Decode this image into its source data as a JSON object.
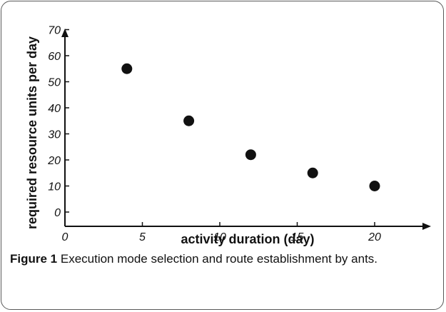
{
  "chart_data": {
    "type": "scatter",
    "title": "",
    "xlabel": "activity duration (day)",
    "ylabel": "required resource units per day",
    "xlim": [
      0,
      23.5
    ],
    "ylim": [
      -6,
      70
    ],
    "x_ticks": [
      0,
      5,
      10,
      15,
      20
    ],
    "y_ticks": [
      0,
      10,
      20,
      30,
      40,
      50,
      60,
      70
    ],
    "grid": false,
    "marker_color": "#111111",
    "points": [
      {
        "x": 4,
        "y": 55
      },
      {
        "x": 8,
        "y": 35
      },
      {
        "x": 12,
        "y": 22
      },
      {
        "x": 16,
        "y": 15
      },
      {
        "x": 20,
        "y": 10
      }
    ]
  },
  "caption": {
    "label": "Figure 1",
    "text": "Execution mode selection and route establishment by ants."
  }
}
